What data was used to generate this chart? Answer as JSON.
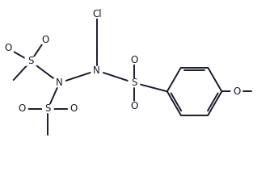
{
  "bg_color": "#ffffff",
  "line_color": "#1a1a2e",
  "line_width": 1.4,
  "font_size": 8.5,
  "figsize": [
    3.39,
    2.23
  ],
  "dpi": 100,
  "xlim": [
    0,
    9.5
  ],
  "ylim": [
    0,
    6.2
  ]
}
